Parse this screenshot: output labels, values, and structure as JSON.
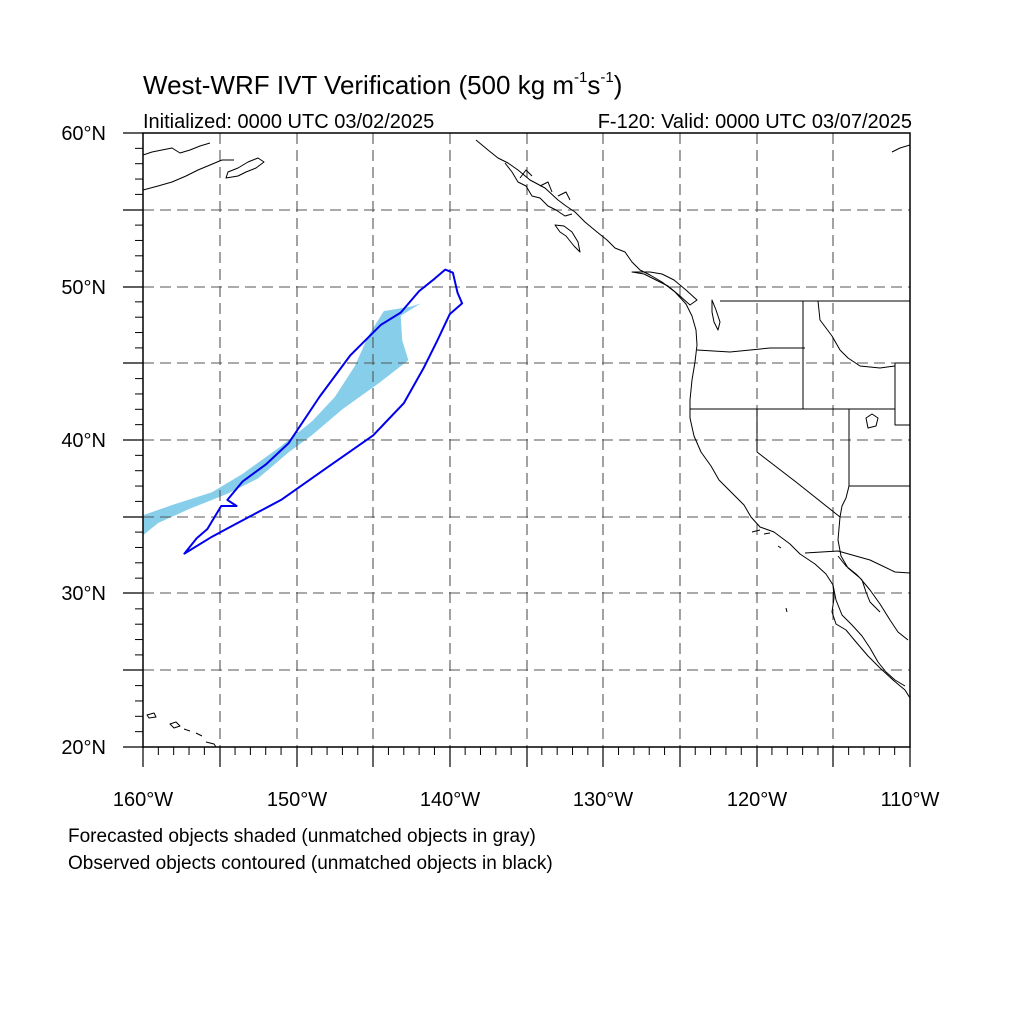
{
  "title": {
    "main": "West-WRF IVT Verification (500 kg m",
    "sup1": "-1",
    "mid": "s",
    "sup2": "-1",
    "end": ")"
  },
  "subtitle_left": "Initialized: 0000 UTC 03/02/2025",
  "subtitle_right": "F-120: Valid: 0000 UTC 03/07/2025",
  "lat_labels": [
    "60°N",
    "50°N",
    "40°N",
    "30°N",
    "20°N"
  ],
  "lon_labels": [
    "160°W",
    "150°W",
    "140°W",
    "130°W",
    "120°W",
    "110°W"
  ],
  "footnote_1": "Forecasted objects shaded (unmatched objects in gray)",
  "footnote_2": "Observed objects contoured (unmatched objects in black)",
  "colors": {
    "forecast_fill": "#87ceeb",
    "observed_contour": "#0000ee",
    "coastline": "#000000",
    "grid": "#555555"
  },
  "map_extent": {
    "lon": [
      -160,
      -110
    ],
    "lat": [
      20,
      60
    ]
  },
  "forecast_object": {
    "name": "matched forecast IVT object",
    "outline_lonlat": [
      [
        -160,
        35.1
      ],
      [
        -158,
        35.8
      ],
      [
        -155.5,
        36.6
      ],
      [
        -153.5,
        37.8
      ],
      [
        -151,
        39.6
      ],
      [
        -149,
        41.2
      ],
      [
        -147.5,
        42.8
      ],
      [
        -146.2,
        44.8
      ],
      [
        -145.3,
        46.8
      ],
      [
        -144.3,
        48.4
      ],
      [
        -142.5,
        48.7
      ],
      [
        -141.9,
        48.9
      ],
      [
        -143.2,
        48.1
      ],
      [
        -143.1,
        46.5
      ],
      [
        -142.7,
        45.2
      ],
      [
        -144.5,
        43.8
      ],
      [
        -147,
        42
      ],
      [
        -149,
        40.3
      ],
      [
        -150.5,
        39.2
      ],
      [
        -152.5,
        37.5
      ],
      [
        -154.5,
        36.5
      ],
      [
        -157,
        35.5
      ],
      [
        -159,
        34.6
      ],
      [
        -160,
        33.8
      ]
    ]
  },
  "observed_object": {
    "name": "matched observed IVT object",
    "outline_lonlat": [
      [
        -157.3,
        32.6
      ],
      [
        -155.5,
        33.7
      ],
      [
        -154,
        34.5
      ],
      [
        -151,
        36.1
      ],
      [
        -148,
        38.2
      ],
      [
        -145,
        40.3
      ],
      [
        -143,
        42.4
      ],
      [
        -141.7,
        44.7
      ],
      [
        -140.8,
        46.5
      ],
      [
        -140,
        48.2
      ],
      [
        -139.2,
        48.9
      ],
      [
        -139.5,
        49.6
      ],
      [
        -139.8,
        50.9
      ],
      [
        -140.3,
        51.1
      ],
      [
        -141,
        50.5
      ],
      [
        -142,
        49.7
      ],
      [
        -143.2,
        48.3
      ],
      [
        -144.5,
        47.5
      ],
      [
        -146.5,
        45.5
      ],
      [
        -148.5,
        42.8
      ],
      [
        -150.5,
        39.8
      ],
      [
        -152,
        38.4
      ],
      [
        -153.5,
        37.3
      ],
      [
        -154.5,
        36.1
      ],
      [
        -153.9,
        35.7
      ],
      [
        -154.9,
        35.7
      ],
      [
        -155.8,
        34.2
      ],
      [
        -156.5,
        33.6
      ]
    ]
  }
}
